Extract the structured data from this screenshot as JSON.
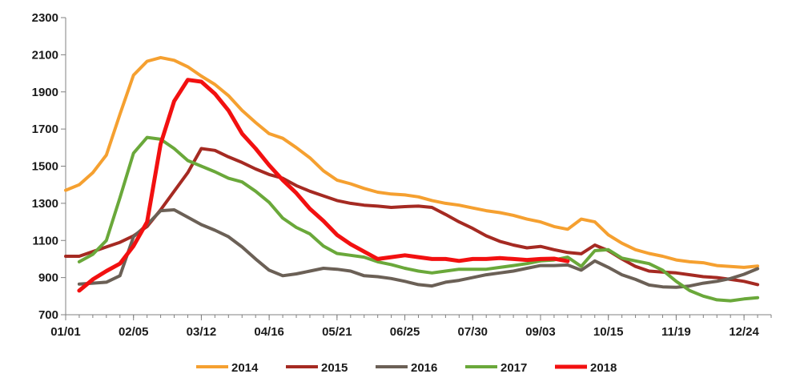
{
  "chart_data": {
    "type": "line",
    "title": "",
    "xlabel": "",
    "ylabel": "",
    "x_tick_labels": [
      "01/01",
      "02/05",
      "03/12",
      "04/16",
      "05/21",
      "06/25",
      "07/30",
      "09/03",
      "10/15",
      "11/19",
      "12/24"
    ],
    "x_range_weeks": [
      1,
      53
    ],
    "y_ticks": [
      700,
      900,
      1100,
      1300,
      1500,
      1700,
      1900,
      2100,
      2300
    ],
    "ylim": [
      700,
      2300
    ],
    "grid": false,
    "legend_position": "bottom",
    "series": [
      {
        "name": "2014",
        "color": "#F5A030",
        "values": [
          [
            1,
            1370
          ],
          [
            2,
            1400
          ],
          [
            3,
            1465
          ],
          [
            4,
            1560
          ],
          [
            5,
            1780
          ],
          [
            6,
            1990
          ],
          [
            7,
            2065
          ],
          [
            8,
            2085
          ],
          [
            9,
            2070
          ],
          [
            10,
            2035
          ],
          [
            11,
            1985
          ],
          [
            12,
            1940
          ],
          [
            13,
            1880
          ],
          [
            14,
            1800
          ],
          [
            15,
            1735
          ],
          [
            16,
            1675
          ],
          [
            17,
            1650
          ],
          [
            18,
            1600
          ],
          [
            19,
            1545
          ],
          [
            20,
            1475
          ],
          [
            21,
            1425
          ],
          [
            22,
            1405
          ],
          [
            23,
            1380
          ],
          [
            24,
            1360
          ],
          [
            25,
            1350
          ],
          [
            26,
            1345
          ],
          [
            27,
            1335
          ],
          [
            28,
            1315
          ],
          [
            29,
            1300
          ],
          [
            30,
            1290
          ],
          [
            31,
            1275
          ],
          [
            32,
            1260
          ],
          [
            33,
            1250
          ],
          [
            34,
            1235
          ],
          [
            35,
            1215
          ],
          [
            36,
            1200
          ],
          [
            37,
            1175
          ],
          [
            38,
            1160
          ],
          [
            39,
            1215
          ],
          [
            40,
            1200
          ],
          [
            41,
            1130
          ],
          [
            42,
            1085
          ],
          [
            43,
            1050
          ],
          [
            44,
            1030
          ],
          [
            45,
            1015
          ],
          [
            46,
            995
          ],
          [
            47,
            985
          ],
          [
            48,
            980
          ],
          [
            49,
            965
          ],
          [
            50,
            960
          ],
          [
            51,
            955
          ],
          [
            52,
            962
          ]
        ]
      },
      {
        "name": "2015",
        "color": "#A52A22",
        "values": [
          [
            1,
            1015
          ],
          [
            2,
            1015
          ],
          [
            3,
            1040
          ],
          [
            4,
            1065
          ],
          [
            5,
            1090
          ],
          [
            6,
            1125
          ],
          [
            7,
            1175
          ],
          [
            8,
            1265
          ],
          [
            9,
            1365
          ],
          [
            10,
            1465
          ],
          [
            11,
            1595
          ],
          [
            12,
            1585
          ],
          [
            13,
            1550
          ],
          [
            14,
            1520
          ],
          [
            15,
            1485
          ],
          [
            16,
            1455
          ],
          [
            17,
            1435
          ],
          [
            18,
            1395
          ],
          [
            19,
            1365
          ],
          [
            20,
            1340
          ],
          [
            21,
            1315
          ],
          [
            22,
            1300
          ],
          [
            23,
            1290
          ],
          [
            24,
            1285
          ],
          [
            25,
            1278
          ],
          [
            26,
            1282
          ],
          [
            27,
            1285
          ],
          [
            28,
            1278
          ],
          [
            29,
            1240
          ],
          [
            30,
            1200
          ],
          [
            31,
            1165
          ],
          [
            32,
            1125
          ],
          [
            33,
            1095
          ],
          [
            34,
            1075
          ],
          [
            35,
            1060
          ],
          [
            36,
            1068
          ],
          [
            37,
            1050
          ],
          [
            38,
            1035
          ],
          [
            39,
            1028
          ],
          [
            40,
            1075
          ],
          [
            41,
            1045
          ],
          [
            42,
            1000
          ],
          [
            43,
            960
          ],
          [
            44,
            935
          ],
          [
            45,
            930
          ],
          [
            46,
            925
          ],
          [
            47,
            915
          ],
          [
            48,
            905
          ],
          [
            49,
            900
          ],
          [
            50,
            890
          ],
          [
            51,
            880
          ],
          [
            52,
            862
          ]
        ]
      },
      {
        "name": "2016",
        "color": "#6B6056",
        "values": [
          [
            2,
            865
          ],
          [
            3,
            870
          ],
          [
            4,
            875
          ],
          [
            5,
            910
          ],
          [
            6,
            1120
          ],
          [
            7,
            1185
          ],
          [
            8,
            1260
          ],
          [
            9,
            1265
          ],
          [
            10,
            1225
          ],
          [
            11,
            1185
          ],
          [
            12,
            1155
          ],
          [
            13,
            1120
          ],
          [
            14,
            1065
          ],
          [
            15,
            1000
          ],
          [
            16,
            940
          ],
          [
            17,
            910
          ],
          [
            18,
            920
          ],
          [
            19,
            935
          ],
          [
            20,
            950
          ],
          [
            21,
            945
          ],
          [
            22,
            935
          ],
          [
            23,
            910
          ],
          [
            24,
            905
          ],
          [
            25,
            895
          ],
          [
            26,
            880
          ],
          [
            27,
            862
          ],
          [
            28,
            855
          ],
          [
            29,
            875
          ],
          [
            30,
            885
          ],
          [
            31,
            900
          ],
          [
            32,
            915
          ],
          [
            33,
            925
          ],
          [
            34,
            935
          ],
          [
            35,
            950
          ],
          [
            36,
            965
          ],
          [
            37,
            965
          ],
          [
            38,
            968
          ],
          [
            39,
            940
          ],
          [
            40,
            990
          ],
          [
            41,
            955
          ],
          [
            42,
            915
          ],
          [
            43,
            890
          ],
          [
            44,
            860
          ],
          [
            45,
            850
          ],
          [
            46,
            848
          ],
          [
            47,
            855
          ],
          [
            48,
            870
          ],
          [
            49,
            880
          ],
          [
            50,
            895
          ],
          [
            51,
            918
          ],
          [
            52,
            948
          ]
        ]
      },
      {
        "name": "2017",
        "color": "#6AA83A",
        "values": [
          [
            2,
            985
          ],
          [
            3,
            1025
          ],
          [
            4,
            1100
          ],
          [
            5,
            1330
          ],
          [
            6,
            1570
          ],
          [
            7,
            1655
          ],
          [
            8,
            1645
          ],
          [
            9,
            1595
          ],
          [
            10,
            1530
          ],
          [
            11,
            1500
          ],
          [
            12,
            1470
          ],
          [
            13,
            1435
          ],
          [
            14,
            1415
          ],
          [
            15,
            1365
          ],
          [
            16,
            1305
          ],
          [
            17,
            1220
          ],
          [
            18,
            1170
          ],
          [
            19,
            1135
          ],
          [
            20,
            1070
          ],
          [
            21,
            1030
          ],
          [
            22,
            1020
          ],
          [
            23,
            1010
          ],
          [
            24,
            985
          ],
          [
            25,
            970
          ],
          [
            26,
            950
          ],
          [
            27,
            935
          ],
          [
            28,
            925
          ],
          [
            29,
            935
          ],
          [
            30,
            945
          ],
          [
            31,
            945
          ],
          [
            32,
            945
          ],
          [
            33,
            955
          ],
          [
            34,
            965
          ],
          [
            35,
            975
          ],
          [
            36,
            990
          ],
          [
            37,
            995
          ],
          [
            38,
            1010
          ],
          [
            39,
            960
          ],
          [
            40,
            1045
          ],
          [
            41,
            1050
          ],
          [
            42,
            1005
          ],
          [
            43,
            990
          ],
          [
            44,
            975
          ],
          [
            45,
            940
          ],
          [
            46,
            880
          ],
          [
            47,
            830
          ],
          [
            48,
            800
          ],
          [
            49,
            780
          ],
          [
            50,
            775
          ],
          [
            51,
            785
          ],
          [
            52,
            792
          ]
        ]
      },
      {
        "name": "2018",
        "color": "#F21010",
        "values": [
          [
            2,
            830
          ],
          [
            3,
            890
          ],
          [
            4,
            935
          ],
          [
            5,
            975
          ],
          [
            6,
            1070
          ],
          [
            7,
            1200
          ],
          [
            8,
            1620
          ],
          [
            9,
            1850
          ],
          [
            10,
            1965
          ],
          [
            11,
            1955
          ],
          [
            12,
            1890
          ],
          [
            13,
            1800
          ],
          [
            14,
            1675
          ],
          [
            15,
            1595
          ],
          [
            16,
            1505
          ],
          [
            17,
            1425
          ],
          [
            18,
            1355
          ],
          [
            19,
            1270
          ],
          [
            20,
            1205
          ],
          [
            21,
            1130
          ],
          [
            22,
            1080
          ],
          [
            23,
            1040
          ],
          [
            24,
            1000
          ],
          [
            25,
            1010
          ],
          [
            26,
            1020
          ],
          [
            27,
            1010
          ],
          [
            28,
            1000
          ],
          [
            29,
            1000
          ],
          [
            30,
            990
          ],
          [
            31,
            1000
          ],
          [
            32,
            1000
          ],
          [
            33,
            1005
          ],
          [
            34,
            1000
          ],
          [
            35,
            995
          ],
          [
            36,
            1000
          ],
          [
            37,
            1002
          ],
          [
            38,
            988
          ]
        ]
      }
    ]
  }
}
